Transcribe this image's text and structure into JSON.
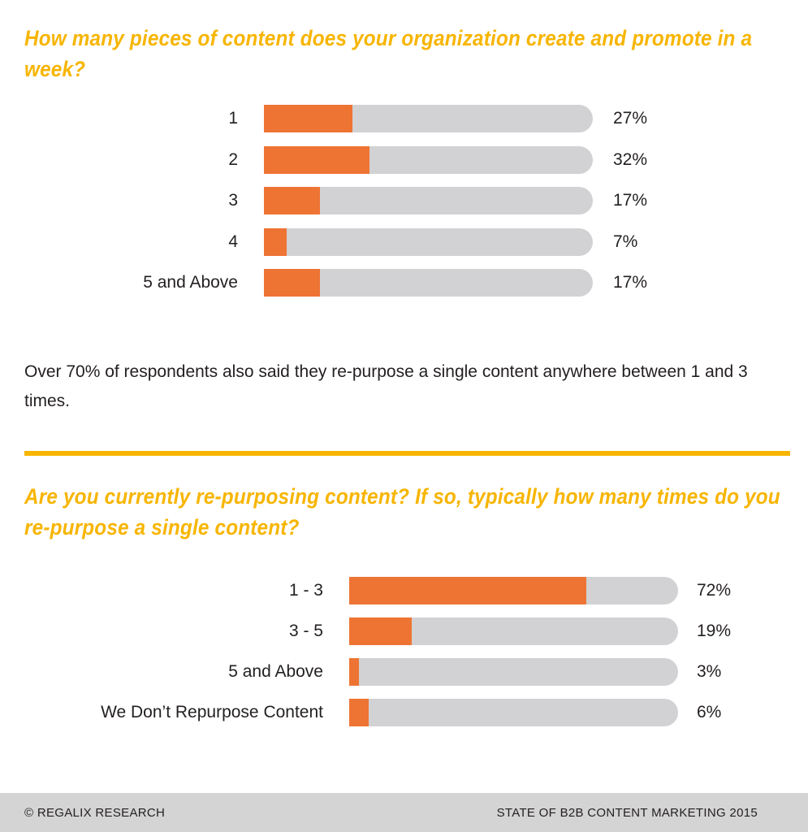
{
  "colors": {
    "accent": "#f7b500",
    "bar_fill": "#ee7434",
    "bar_track": "#d2d1d3",
    "footer_bg": "#d4d4d4",
    "text": "#231f20"
  },
  "note": "Over 70% of respondents also said they re-purpose a single content anywhere between 1 and 3 times.",
  "footer": {
    "left": "© REGALIX RESEARCH",
    "right": "STATE OF B2B CONTENT MARKETING 2015"
  },
  "chart_data": [
    {
      "type": "bar",
      "orientation": "horizontal",
      "title": "How many pieces of content does your organization create and promote in a week?",
      "categories": [
        "1",
        "2",
        "3",
        "4",
        "5 and Above"
      ],
      "values": [
        27,
        32,
        17,
        7,
        17
      ],
      "value_labels": [
        "27%",
        "32%",
        "17%",
        "7%",
        "17%"
      ],
      "unit": "%",
      "xlim": [
        0,
        100
      ],
      "grid": false
    },
    {
      "type": "bar",
      "orientation": "horizontal",
      "title": "Are you currently re-purposing content? If so, typically how many times do you re-purpose a single content?",
      "categories": [
        "1 - 3",
        "3 - 5",
        "5 and Above",
        "We Don’t Repurpose Content"
      ],
      "values": [
        72,
        19,
        3,
        6
      ],
      "value_labels": [
        "72%",
        "19%",
        "3%",
        "6%"
      ],
      "unit": "%",
      "xlim": [
        0,
        100
      ],
      "grid": false
    }
  ]
}
